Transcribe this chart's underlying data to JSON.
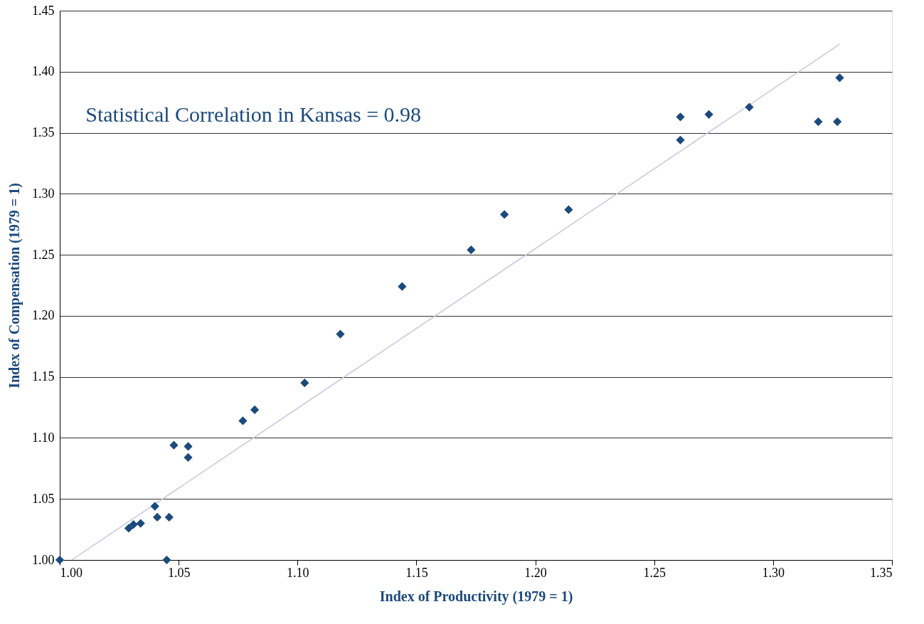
{
  "chart_data": {
    "type": "scatter",
    "xlabel": "Index of Productivity (1979 = 1)",
    "ylabel": "Index of Compensation (1979 = 1)",
    "annotations": [
      "Statistical Correlation in Kansas = 0.98"
    ],
    "xlim": [
      1.0,
      1.35
    ],
    "ylim": [
      1.0,
      1.45
    ],
    "xticks": [
      {
        "value": 1.0,
        "label": "1.00"
      },
      {
        "value": 1.05,
        "label": "1.05"
      },
      {
        "value": 1.1,
        "label": "1.10"
      },
      {
        "value": 1.15,
        "label": "1.15"
      },
      {
        "value": 1.2,
        "label": "1.20"
      },
      {
        "value": 1.25,
        "label": "1.25"
      },
      {
        "value": 1.3,
        "label": "1.30"
      },
      {
        "value": 1.35,
        "label": "1.35"
      }
    ],
    "yticks": [
      {
        "value": 1.0,
        "label": "1.00"
      },
      {
        "value": 1.05,
        "label": "1.05"
      },
      {
        "value": 1.1,
        "label": "1.10"
      },
      {
        "value": 1.15,
        "label": "1.15"
      },
      {
        "value": 1.2,
        "label": "1.20"
      },
      {
        "value": 1.25,
        "label": "1.25"
      },
      {
        "value": 1.3,
        "label": "1.30"
      },
      {
        "value": 1.35,
        "label": "1.35"
      },
      {
        "value": 1.4,
        "label": "1.40"
      },
      {
        "value": 1.45,
        "label": "1.45"
      }
    ],
    "grid": "y",
    "marker": "diamond",
    "series": [
      {
        "color": "#1c4a7c",
        "x": [
          1.0,
          1.029,
          1.031,
          1.034,
          1.04,
          1.041,
          1.046,
          1.045,
          1.048,
          1.054,
          1.054,
          1.077,
          1.082,
          1.103,
          1.118,
          1.144,
          1.173,
          1.187,
          1.214,
          1.261,
          1.261,
          1.273,
          1.29,
          1.319,
          1.327,
          1.328
        ],
        "values": [
          1.0,
          1.026,
          1.029,
          1.03,
          1.044,
          1.035,
          1.035,
          1.0,
          1.094,
          1.093,
          1.084,
          1.114,
          1.123,
          1.145,
          1.185,
          1.224,
          1.254,
          1.283,
          1.287,
          1.363,
          1.344,
          1.365,
          1.371,
          1.359,
          1.359,
          1.395
        ]
      },
      {
        "type": "line",
        "marker": "none",
        "color": "#c8c8e0",
        "x": [
          1.005,
          1.328
        ],
        "values": [
          1.0,
          1.4225
        ]
      }
    ]
  }
}
